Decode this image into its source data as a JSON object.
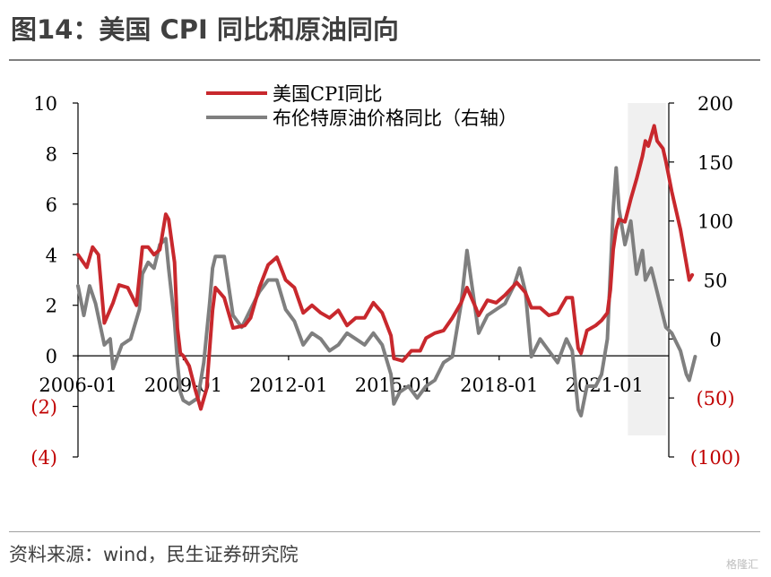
{
  "page": {
    "title": "图14：美国 CPI 同比和原油同向",
    "source": "资料来源：wind，民生证券研究院",
    "watermark": "格隆汇"
  },
  "chart_data": {
    "type": "line",
    "title": "",
    "xlabel": "",
    "ylabel": "",
    "x_tick_labels": [
      "2006-01",
      "2009-01",
      "2012-01",
      "2015-01",
      "2018-01",
      "2021-01"
    ],
    "x_range": [
      "2006-01",
      "2022-11"
    ],
    "left_axis": {
      "ylim": [
        -4,
        10
      ],
      "ticks": [
        10,
        8,
        6,
        4,
        2,
        0,
        -2,
        -4
      ],
      "tick_labels": [
        "10",
        "8",
        "6",
        "4",
        "2",
        "0",
        "(2)",
        "(4)"
      ]
    },
    "right_axis": {
      "ylim": [
        -100,
        200
      ],
      "ticks": [
        200,
        150,
        100,
        50,
        0,
        -50,
        -100
      ],
      "tick_labels": [
        "200",
        "150",
        "100",
        "50",
        "0",
        "(50)",
        "(100)"
      ]
    },
    "highlight_region": {
      "x_start": "2021-09",
      "x_end": "2022-10",
      "color": "#f0f0f0"
    },
    "legend_position": "top-center",
    "colors": {
      "cpi": "#c8282d",
      "oil": "#7f7f7f",
      "negative_tick": "#c00000"
    },
    "series": [
      {
        "name": "美国CPI同比",
        "axis": "left",
        "color": "#c8282d",
        "points": [
          [
            "2006-01",
            4.0
          ],
          [
            "2006-04",
            3.5
          ],
          [
            "2006-06",
            4.3
          ],
          [
            "2006-08",
            4.0
          ],
          [
            "2006-10",
            1.3
          ],
          [
            "2007-01",
            2.1
          ],
          [
            "2007-03",
            2.8
          ],
          [
            "2007-06",
            2.7
          ],
          [
            "2007-09",
            2.0
          ],
          [
            "2007-11",
            4.3
          ],
          [
            "2008-01",
            4.3
          ],
          [
            "2008-03",
            4.0
          ],
          [
            "2008-05",
            4.2
          ],
          [
            "2008-07",
            5.6
          ],
          [
            "2008-08",
            5.4
          ],
          [
            "2008-10",
            3.7
          ],
          [
            "2008-11",
            1.1
          ],
          [
            "2008-12",
            0.1
          ],
          [
            "2009-01",
            0.0
          ],
          [
            "2009-03",
            -0.4
          ],
          [
            "2009-05",
            -1.3
          ],
          [
            "2009-07",
            -2.1
          ],
          [
            "2009-09",
            -1.3
          ],
          [
            "2009-11",
            1.8
          ],
          [
            "2009-12",
            2.7
          ],
          [
            "2010-03",
            2.3
          ],
          [
            "2010-06",
            1.1
          ],
          [
            "2010-10",
            1.2
          ],
          [
            "2010-12",
            1.5
          ],
          [
            "2011-03",
            2.7
          ],
          [
            "2011-06",
            3.6
          ],
          [
            "2011-09",
            3.9
          ],
          [
            "2011-12",
            3.0
          ],
          [
            "2012-03",
            2.7
          ],
          [
            "2012-06",
            1.7
          ],
          [
            "2012-09",
            2.0
          ],
          [
            "2012-12",
            1.7
          ],
          [
            "2013-03",
            1.5
          ],
          [
            "2013-06",
            1.8
          ],
          [
            "2013-09",
            1.2
          ],
          [
            "2013-12",
            1.5
          ],
          [
            "2014-03",
            1.5
          ],
          [
            "2014-06",
            2.1
          ],
          [
            "2014-09",
            1.7
          ],
          [
            "2014-12",
            0.8
          ],
          [
            "2015-01",
            -0.1
          ],
          [
            "2015-04",
            -0.2
          ],
          [
            "2015-07",
            0.2
          ],
          [
            "2015-10",
            0.2
          ],
          [
            "2015-12",
            0.7
          ],
          [
            "2016-03",
            0.9
          ],
          [
            "2016-06",
            1.0
          ],
          [
            "2016-09",
            1.5
          ],
          [
            "2016-12",
            2.1
          ],
          [
            "2017-02",
            2.7
          ],
          [
            "2017-05",
            1.9
          ],
          [
            "2017-06",
            1.6
          ],
          [
            "2017-09",
            2.2
          ],
          [
            "2017-12",
            2.1
          ],
          [
            "2018-03",
            2.4
          ],
          [
            "2018-07",
            2.9
          ],
          [
            "2018-10",
            2.5
          ],
          [
            "2018-12",
            1.9
          ],
          [
            "2019-03",
            1.9
          ],
          [
            "2019-06",
            1.6
          ],
          [
            "2019-09",
            1.7
          ],
          [
            "2019-12",
            2.3
          ],
          [
            "2020-02",
            2.3
          ],
          [
            "2020-04",
            0.3
          ],
          [
            "2020-05",
            0.1
          ],
          [
            "2020-07",
            1.0
          ],
          [
            "2020-10",
            1.2
          ],
          [
            "2020-12",
            1.4
          ],
          [
            "2021-02",
            1.7
          ],
          [
            "2021-03",
            2.6
          ],
          [
            "2021-04",
            4.2
          ],
          [
            "2021-05",
            5.0
          ],
          [
            "2021-06",
            5.4
          ],
          [
            "2021-08",
            5.3
          ],
          [
            "2021-10",
            6.2
          ],
          [
            "2021-12",
            7.0
          ],
          [
            "2022-02",
            7.9
          ],
          [
            "2022-03",
            8.5
          ],
          [
            "2022-04",
            8.3
          ],
          [
            "2022-06",
            9.1
          ],
          [
            "2022-07",
            8.5
          ],
          [
            "2022-09",
            8.2
          ],
          [
            "2022-10",
            7.7
          ],
          [
            "2022-12",
            6.5
          ],
          [
            "2023-03",
            5.0
          ],
          [
            "2023-06",
            3.0
          ],
          [
            "2023-07",
            3.2
          ]
        ]
      },
      {
        "name": "布伦特原油价格同比（右轴）",
        "axis": "right",
        "color": "#7f7f7f",
        "points": [
          [
            "2006-01",
            45
          ],
          [
            "2006-03",
            20
          ],
          [
            "2006-05",
            45
          ],
          [
            "2006-07",
            30
          ],
          [
            "2006-10",
            -5
          ],
          [
            "2006-12",
            0
          ],
          [
            "2007-01",
            -25
          ],
          [
            "2007-04",
            -5
          ],
          [
            "2007-07",
            0
          ],
          [
            "2007-10",
            25
          ],
          [
            "2007-11",
            55
          ],
          [
            "2008-01",
            65
          ],
          [
            "2008-03",
            60
          ],
          [
            "2008-05",
            80
          ],
          [
            "2008-07",
            85
          ],
          [
            "2008-08",
            60
          ],
          [
            "2008-10",
            15
          ],
          [
            "2008-11",
            -20
          ],
          [
            "2008-12",
            -45
          ],
          [
            "2009-01",
            -52
          ],
          [
            "2009-03",
            -55
          ],
          [
            "2009-06",
            -50
          ],
          [
            "2009-08",
            -20
          ],
          [
            "2009-10",
            30
          ],
          [
            "2009-11",
            60
          ],
          [
            "2009-12",
            70
          ],
          [
            "2010-03",
            70
          ],
          [
            "2010-06",
            20
          ],
          [
            "2010-09",
            10
          ],
          [
            "2010-12",
            25
          ],
          [
            "2011-03",
            40
          ],
          [
            "2011-06",
            50
          ],
          [
            "2011-09",
            50
          ],
          [
            "2011-12",
            25
          ],
          [
            "2012-03",
            15
          ],
          [
            "2012-06",
            -5
          ],
          [
            "2012-09",
            5
          ],
          [
            "2012-12",
            0
          ],
          [
            "2013-03",
            -10
          ],
          [
            "2013-06",
            -5
          ],
          [
            "2013-09",
            5
          ],
          [
            "2013-12",
            0
          ],
          [
            "2014-03",
            -5
          ],
          [
            "2014-06",
            5
          ],
          [
            "2014-09",
            -5
          ],
          [
            "2014-12",
            -30
          ],
          [
            "2015-01",
            -55
          ],
          [
            "2015-03",
            -45
          ],
          [
            "2015-06",
            -40
          ],
          [
            "2015-09",
            -50
          ],
          [
            "2015-12",
            -40
          ],
          [
            "2016-03",
            -35
          ],
          [
            "2016-06",
            -20
          ],
          [
            "2016-09",
            -15
          ],
          [
            "2016-12",
            30
          ],
          [
            "2017-02",
            75
          ],
          [
            "2017-04",
            40
          ],
          [
            "2017-06",
            5
          ],
          [
            "2017-09",
            20
          ],
          [
            "2017-12",
            25
          ],
          [
            "2018-03",
            30
          ],
          [
            "2018-06",
            45
          ],
          [
            "2018-08",
            60
          ],
          [
            "2018-10",
            40
          ],
          [
            "2018-12",
            -15
          ],
          [
            "2019-03",
            0
          ],
          [
            "2019-06",
            -10
          ],
          [
            "2019-09",
            -20
          ],
          [
            "2019-12",
            0
          ],
          [
            "2020-02",
            -10
          ],
          [
            "2020-04",
            -60
          ],
          [
            "2020-05",
            -65
          ],
          [
            "2020-07",
            -40
          ],
          [
            "2020-10",
            -40
          ],
          [
            "2020-12",
            -30
          ],
          [
            "2021-02",
            0
          ],
          [
            "2021-04",
            110
          ],
          [
            "2021-05",
            145
          ],
          [
            "2021-06",
            110
          ],
          [
            "2021-08",
            80
          ],
          [
            "2021-10",
            100
          ],
          [
            "2021-12",
            55
          ],
          [
            "2022-02",
            75
          ],
          [
            "2022-03",
            50
          ],
          [
            "2022-05",
            60
          ],
          [
            "2022-06",
            50
          ],
          [
            "2022-08",
            30
          ],
          [
            "2022-10",
            10
          ],
          [
            "2022-12",
            5
          ],
          [
            "2023-03",
            -10
          ],
          [
            "2023-05",
            -30
          ],
          [
            "2023-06",
            -35
          ],
          [
            "2023-08",
            -15
          ]
        ]
      }
    ]
  }
}
